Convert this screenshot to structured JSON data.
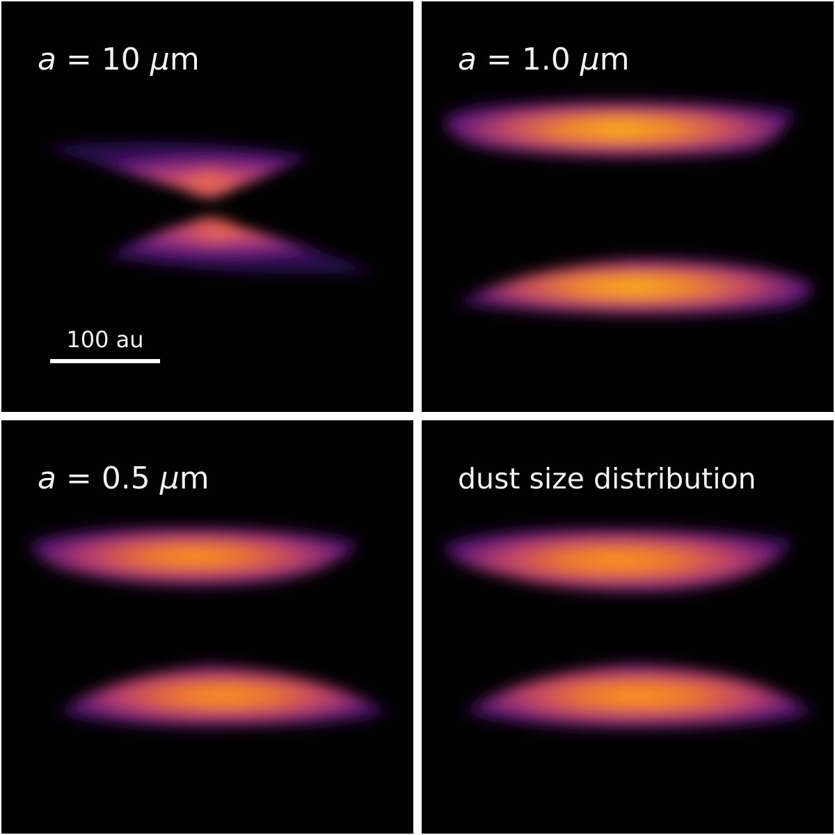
{
  "panels": [
    {
      "id": "p0",
      "label": {
        "symbol": "a",
        "eq": " = ",
        "value": " 10",
        "mu": "μ",
        "unit": "m"
      }
    },
    {
      "id": "p1",
      "label": {
        "symbol": "a",
        "eq": " = ",
        "value": " 1.0",
        "mu": "μ",
        "unit": "m"
      }
    },
    {
      "id": "p2",
      "label": {
        "symbol": "a",
        "eq": " = ",
        "value": " 0.5",
        "mu": "μ",
        "unit": "m"
      }
    },
    {
      "id": "p3",
      "label": {
        "text": "dust size distribution"
      }
    }
  ],
  "scale_bar": {
    "label": "100 au"
  },
  "colors": {
    "background": "#020102",
    "glow_bright": "#ffb414",
    "glow_mid": "#e8602c",
    "glow_dim": "#6e1f78",
    "divider": "#ffffff"
  }
}
